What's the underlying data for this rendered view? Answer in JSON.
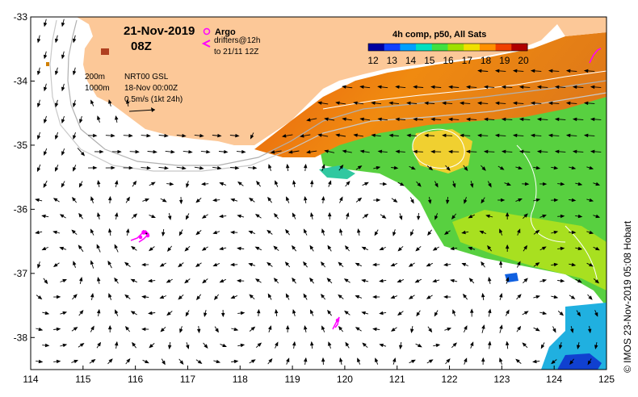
{
  "map": {
    "date_label": "21-Nov-2019",
    "hour_label": "08Z",
    "argo_label": "Argo",
    "drifters_label": "drifters@12h",
    "drifters_to_label": "to 21/11 12Z",
    "depth_200": "200m",
    "depth_1000": "1000m",
    "product_label": "NRT00 GSL",
    "product_time": "18-Nov 00:00Z",
    "scale_label": "0.5m/s (1kt 24h)",
    "colorbar_title": "4h comp, p50, All Sats",
    "colorbar_ticks": [
      "12",
      "13",
      "14",
      "15",
      "16",
      "17",
      "18",
      "19",
      "20"
    ],
    "colorbar_colors": [
      "#0000a0",
      "#1040ff",
      "#00a0ff",
      "#00e0c0",
      "#40e040",
      "#a0e000",
      "#f0e000",
      "#ff9000",
      "#f04000",
      "#b00000"
    ],
    "credit": "© IMOS 23-Nov-2019 05:08 Hobart",
    "lon_ticks": [
      "114",
      "115",
      "116",
      "117",
      "118",
      "119",
      "120",
      "121",
      "122",
      "123",
      "124",
      "125"
    ],
    "lat_ticks": [
      "-33",
      "-34",
      "-35",
      "-36",
      "-37",
      "-38"
    ],
    "land_color": "#fcc898",
    "argo_color": "#ff00ff"
  }
}
